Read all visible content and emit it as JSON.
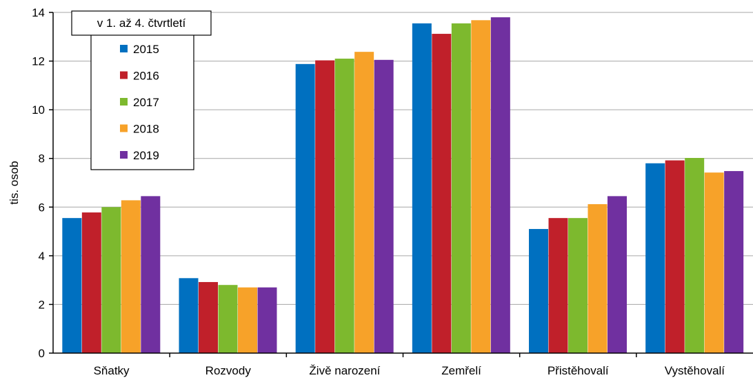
{
  "chart_data": {
    "type": "bar",
    "title": "",
    "ylabel": "tis. osob",
    "xlabel": "",
    "ylim": [
      0,
      14
    ],
    "yticks": [
      0,
      2,
      4,
      6,
      8,
      10,
      12,
      14
    ],
    "grid": "horizontal",
    "legend_title": "v 1. až 4. čtvrtletí",
    "legend_position": "top-left",
    "categories": [
      "Sňatky",
      "Rozvody",
      "Živě narození",
      "Zemřelí",
      "Přistěhovalí",
      "Vystěhovalí"
    ],
    "series": [
      {
        "name": "2015",
        "color": "#0070C0",
        "values": [
          5.55,
          3.08,
          11.88,
          13.55,
          5.1,
          7.8
        ]
      },
      {
        "name": "2016",
        "color": "#C0202A",
        "values": [
          5.78,
          2.92,
          12.03,
          13.12,
          5.55,
          7.92
        ]
      },
      {
        "name": "2017",
        "color": "#7DB92E",
        "values": [
          6.0,
          2.8,
          12.1,
          13.55,
          5.55,
          8.02
        ]
      },
      {
        "name": "2018",
        "color": "#F7A229",
        "values": [
          6.28,
          2.7,
          12.38,
          13.68,
          6.12,
          7.42
        ]
      },
      {
        "name": "2019",
        "color": "#7030A0",
        "values": [
          6.45,
          2.7,
          12.05,
          13.8,
          6.45,
          7.48
        ]
      }
    ]
  }
}
